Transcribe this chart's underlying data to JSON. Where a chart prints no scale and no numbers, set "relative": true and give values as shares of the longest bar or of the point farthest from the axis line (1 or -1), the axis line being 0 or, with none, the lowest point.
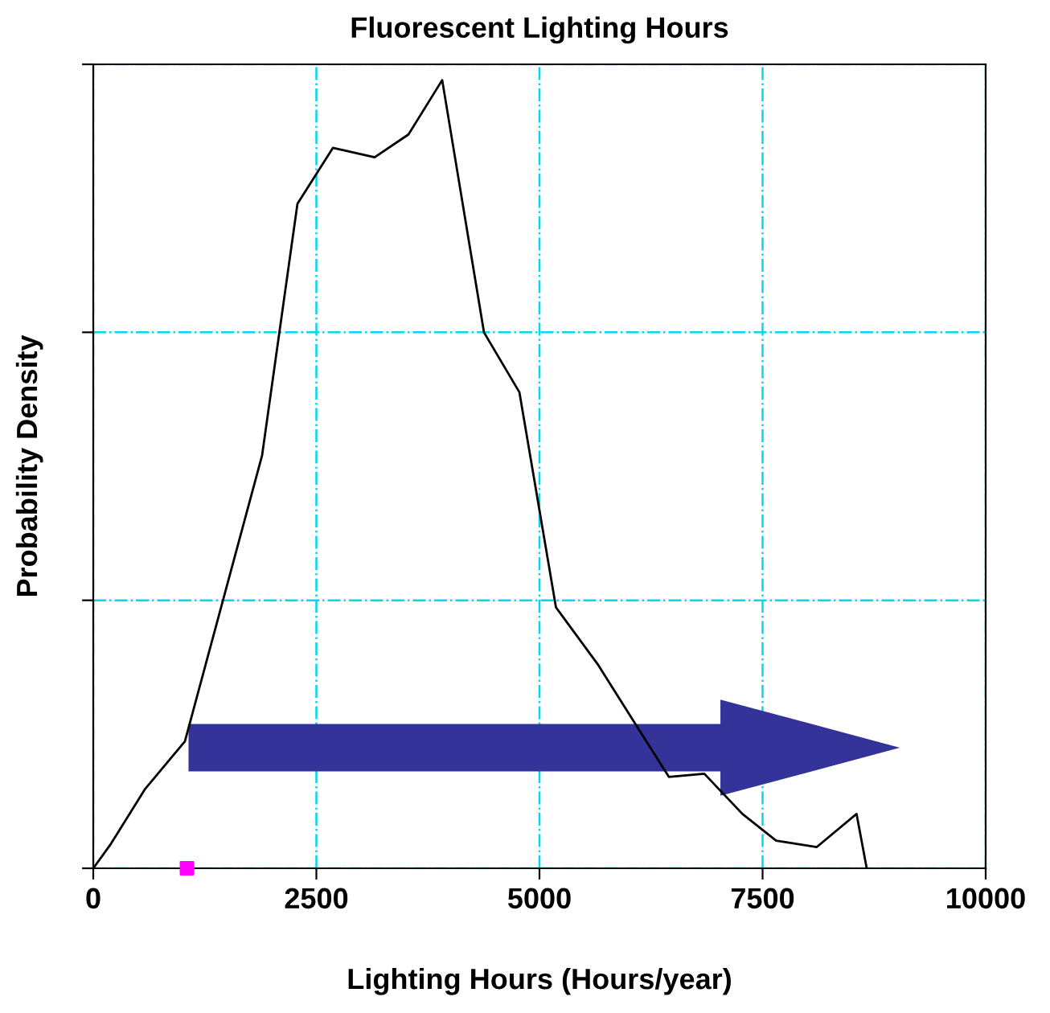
{
  "chart_data": {
    "type": "line",
    "title": "Fluorescent Lighting Hours",
    "xlabel": "Lighting Hours (Hours/year)",
    "ylabel": "Probability Density",
    "relative": true,
    "xlim": [
      0,
      10000
    ],
    "xticks": [
      0,
      2500,
      5000,
      7500,
      10000
    ],
    "grid": true,
    "marker": "none",
    "line_style": "solid",
    "series": [
      {
        "color": "#000000",
        "x": [
          0,
          198,
          577,
          1027,
          1892,
          2288,
          2685,
          3153,
          3532,
          3910,
          4378,
          4775,
          5185,
          5652,
          6103,
          6450,
          6847,
          7274,
          7652,
          8108,
          8553,
          8667
        ],
        "values": [
          0,
          0.031,
          0.1,
          0.161,
          0.524,
          0.843,
          0.914,
          0.902,
          0.931,
          1.0,
          0.68,
          0.604,
          0.331,
          0.259,
          0.178,
          0.116,
          0.12,
          0.069,
          0.035,
          0.027,
          0.069,
          0
        ]
      },
      {
        "type": "scatter",
        "color": "#ff00ff",
        "marker": "square",
        "x": [
          1050
        ],
        "values": [
          0
        ]
      }
    ]
  }
}
